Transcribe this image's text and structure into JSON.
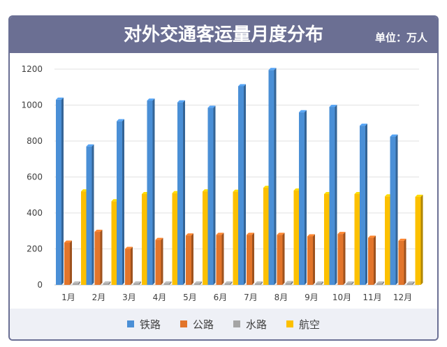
{
  "header": {
    "title": "对外交通客运量月度分布",
    "unit": "单位：万人"
  },
  "colors": {
    "header_bg": "#6b6f93",
    "series": [
      "#4a8fd6",
      "#e2752b",
      "#a5a5a5",
      "#fcc000"
    ]
  },
  "chart_data": {
    "type": "bar",
    "title": "对外交通客运量月度分布",
    "categories": [
      "1月",
      "2月",
      "3月",
      "4月",
      "5月",
      "6月",
      "7月",
      "8月",
      "9月",
      "10月",
      "11月",
      "12月"
    ],
    "series": [
      {
        "name": "铁路",
        "values": [
          1030,
          770,
          910,
          1025,
          1015,
          985,
          1105,
          1195,
          960,
          990,
          885,
          825
        ]
      },
      {
        "name": "公路",
        "values": [
          235,
          295,
          200,
          250,
          275,
          278,
          278,
          278,
          270,
          283,
          262,
          245
        ]
      },
      {
        "name": "水路",
        "values": [
          8,
          8,
          8,
          8,
          8,
          8,
          8,
          10,
          8,
          8,
          8,
          8
        ]
      },
      {
        "name": "航空",
        "values": [
          520,
          465,
          505,
          510,
          520,
          518,
          540,
          525,
          505,
          505,
          492,
          490
        ]
      }
    ],
    "yticks": [
      0,
      200,
      400,
      600,
      800,
      1000,
      1200
    ],
    "ylim": [
      0,
      1200
    ],
    "grid": true,
    "legend": "bottom"
  }
}
